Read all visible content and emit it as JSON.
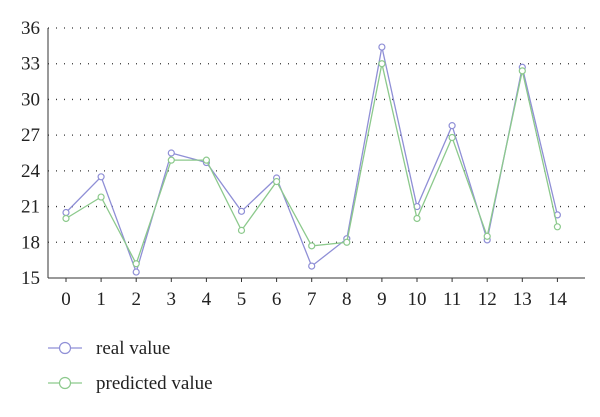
{
  "chart_data": {
    "type": "line",
    "title": "",
    "xlabel": "",
    "ylabel": "",
    "x": [
      0,
      1,
      2,
      3,
      4,
      5,
      6,
      7,
      8,
      9,
      10,
      11,
      12,
      13,
      14
    ],
    "xticks": [
      "0",
      "1",
      "2",
      "3",
      "4",
      "5",
      "6",
      "7",
      "8",
      "9",
      "10",
      "11",
      "12",
      "13",
      "14"
    ],
    "ylim": [
      15,
      36
    ],
    "yticks": [
      "15",
      "18",
      "21",
      "24",
      "27",
      "30",
      "33",
      "36"
    ],
    "grid": "horizontal dotted",
    "legend": "bottom-left",
    "series": [
      {
        "name": "real value",
        "color": "#8f8fd6",
        "values": [
          20.5,
          23.5,
          15.5,
          25.5,
          24.7,
          20.6,
          23.4,
          16.0,
          18.3,
          34.4,
          21.0,
          27.8,
          18.2,
          32.7,
          20.3
        ]
      },
      {
        "name": "predicted value",
        "color": "#8cc98c",
        "values": [
          20.0,
          21.8,
          16.2,
          24.9,
          24.9,
          19.0,
          23.1,
          17.7,
          18.0,
          33.0,
          20.0,
          26.8,
          18.5,
          32.4,
          19.3
        ]
      }
    ]
  }
}
